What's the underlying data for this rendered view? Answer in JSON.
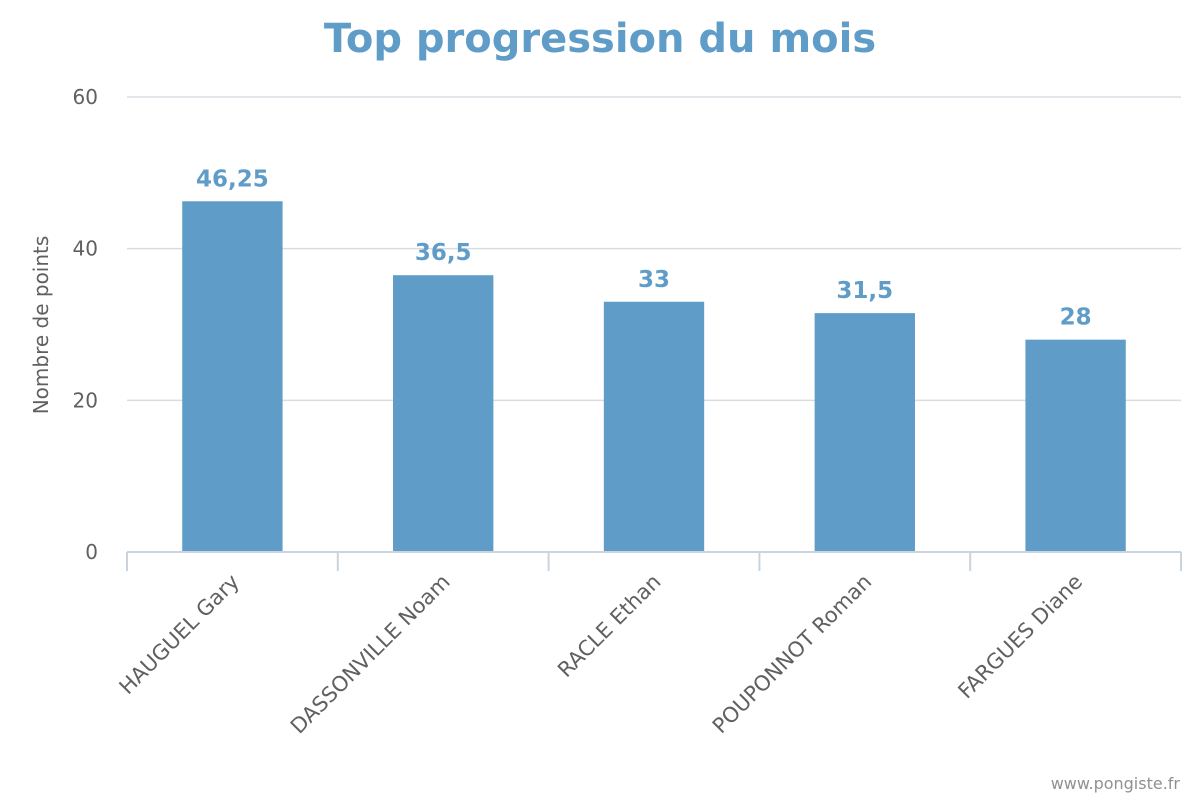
{
  "chart_data": {
    "type": "bar",
    "title": "Top progression du mois",
    "ylabel": "Nombre de points",
    "xlabel": "",
    "categories": [
      "HAUGUEL Gary",
      "DASSONVILLE Noam",
      "RACLE Ethan",
      "POUPONNOT Roman",
      "FARGUES Diane"
    ],
    "values": [
      46.25,
      36.5,
      33,
      31.5,
      28
    ],
    "data_labels": [
      "46,25",
      "36,5",
      "33",
      "31,5",
      "28"
    ],
    "ylim": [
      0,
      60
    ],
    "yticks": [
      0,
      20,
      40,
      60
    ],
    "grid": true,
    "legend": "none",
    "bar_color": "#5f9cc7",
    "credit": "www.pongiste.fr"
  }
}
